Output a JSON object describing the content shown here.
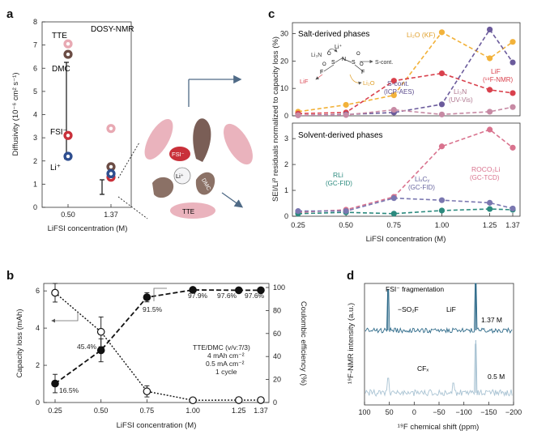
{
  "panels": {
    "a": {
      "label": "a",
      "title": "DOSY-NMR",
      "ylabel": "Diffusivity (10⁻⁶ cm² s⁻¹)",
      "xlabel": "LiFSI concentration (M)",
      "yticks": [
        "0",
        "1",
        "2",
        "3",
        "4",
        "5",
        "6",
        "7",
        "8"
      ],
      "xticks": [
        "0.50",
        "1.37"
      ],
      "species": [
        {
          "name": "TTE",
          "color": "#e8a9b3",
          "ring": "#d9868f",
          "d050": 7.05,
          "d137": 3.4
        },
        {
          "name": "DMC",
          "color": "#6b4c44",
          "ring": "#4a342e",
          "d050": 6.6,
          "d137": 1.75
        },
        {
          "name": "FSI⁻",
          "color": "#c9303a",
          "ring": "#a3222b",
          "d050": 3.1,
          "d137": 1.3
        },
        {
          "name": "Li⁺",
          "color": "#2e4e8f",
          "ring": "#203a6e",
          "d050": 2.2,
          "d137": 1.45
        }
      ],
      "cluster_labels": {
        "fsi": "FSI⁻",
        "li": "Li⁺",
        "dmc": "DMC",
        "tte": "TTE"
      }
    },
    "b": {
      "label": "b",
      "ylabel_left": "Capacity loss (mAh)",
      "ylabel_right": "Coulombic efficiency (%)",
      "xlabel": "LiFSI concentration (M)",
      "conditions": [
        "TTE/DMC (v/v:7/3)",
        "4 mAh cm⁻²",
        "0.5 mA cm⁻²",
        "1 cycle"
      ],
      "ce_labels": [
        "16.5%",
        "45.4%",
        "91.5%",
        "97.9%",
        "97.6%",
        "97.6%"
      ]
    },
    "c": {
      "label": "c",
      "ylabel": "SEI/Li⁰ residuals normalized to capacity loss (%)",
      "xlabel": "LiFSI concentration (M)",
      "top_title": "Salt-derived phases",
      "bottom_title": "Solvent-derived phases",
      "top_labels": {
        "li2o": "Li₂O (KF)",
        "lif": "LiF",
        "lif_method": "(¹⁹F-NMR)",
        "scont": "S-cont.",
        "scont_method": "(ICP-AES)",
        "li3n": "Li₃N",
        "li3n_method": "(UV-Vis)"
      },
      "bottom_labels": {
        "rooco": "ROCO₂Li",
        "rooco_method": "(GC-TCD)",
        "rli": "RLi",
        "rli_method": "(GC-FID)",
        "lixcy": "LiₓCᵧ",
        "lixcy_method": "(GC-FID)"
      },
      "inset_labels": {
        "li": "Li⁺",
        "li3n": "Li₃N",
        "lif": "LiF",
        "li2o": "Li₂O",
        "scont": "S-cont.",
        "f": "F",
        "n": "N",
        "s": "S",
        "o": "O"
      }
    },
    "d": {
      "label": "d",
      "ylabel": "¹⁹F-NMR intensity (a.u.)",
      "xlabel": "¹⁹F chemical shift (ppm)",
      "xticks": [
        "100",
        "50",
        "0",
        "−50",
        "−100",
        "−150",
        "−200"
      ],
      "title": "FSI⁻ fragmentation",
      "peak_labels": [
        "−SO₂F",
        "LiF",
        "CFₓ"
      ],
      "traces": [
        {
          "name": "1.37 M",
          "color": "#2f6b8a"
        },
        {
          "name": "0.5 M",
          "color": "#a9c3d3"
        }
      ]
    }
  },
  "chart_data": [
    {
      "type": "scatter",
      "panel": "a",
      "title": "DOSY-NMR",
      "xlabel": "LiFSI concentration (M)",
      "ylabel": "Diffusivity (10⁻⁶ cm² s⁻¹)",
      "categories": [
        "0.50",
        "1.37"
      ],
      "ylim": [
        0,
        8
      ],
      "series": [
        {
          "name": "TTE",
          "values": [
            7.05,
            3.4
          ]
        },
        {
          "name": "DMC",
          "values": [
            6.6,
            1.75
          ]
        },
        {
          "name": "FSI⁻",
          "values": [
            3.1,
            1.3
          ]
        },
        {
          "name": "Li⁺",
          "values": [
            2.2,
            1.45
          ]
        }
      ]
    },
    {
      "type": "line",
      "panel": "b",
      "xlabel": "LiFSI concentration (M)",
      "x": [
        0.25,
        0.5,
        0.75,
        1.0,
        1.25,
        1.37
      ],
      "xticks": [
        "0.25",
        "0.50",
        "0.75",
        "1.00",
        "1.25",
        "1.37"
      ],
      "ylim": [
        0,
        6.4
      ],
      "ylim_right": [
        0,
        100
      ],
      "yticks_left": [
        0,
        2,
        4,
        6
      ],
      "yticks_right": [
        0,
        20,
        40,
        60,
        80,
        100
      ],
      "series": [
        {
          "axis": "right",
          "style": "filled",
          "values": [
            16.5,
            45.4,
            91.5,
            97.9,
            97.6,
            97.6
          ],
          "err": [
            8,
            10,
            4,
            0,
            0,
            0
          ]
        },
        {
          "axis": "left",
          "style": "open",
          "values": [
            5.9,
            3.8,
            0.6,
            0.12,
            0.13,
            0.13
          ],
          "err": [
            0.5,
            0.8,
            0.3,
            0,
            0,
            0
          ]
        }
      ]
    },
    {
      "type": "line",
      "panel": "c-top",
      "title": "Salt-derived phases",
      "x": [
        0.25,
        0.5,
        0.75,
        1.0,
        1.25,
        1.37
      ],
      "xticks": [
        "0.25",
        "0.50",
        "0.75",
        "1.00",
        "1.25",
        "1.37"
      ],
      "ylim": [
        0,
        34
      ],
      "yticks": [
        0,
        10,
        20,
        30
      ],
      "series": [
        {
          "name": "Li₂O (KF)",
          "color": "#f2b23a",
          "values": [
            1.5,
            4,
            7.5,
            30.5,
            21,
            27
          ]
        },
        {
          "name": "LiF (¹⁹F-NMR)",
          "color": "#d9414d",
          "values": [
            0.8,
            1.2,
            12.8,
            15.5,
            9.5,
            8.3
          ]
        },
        {
          "name": "S-cont. (ICP-AES)",
          "color": "#6b5b9c",
          "values": [
            0.2,
            0.5,
            1.2,
            4.2,
            31.5,
            19.5
          ]
        },
        {
          "name": "Li₃N (UV-Vis)",
          "color": "#c78aa4",
          "values": [
            0.2,
            0.3,
            2.2,
            0.5,
            1.5,
            3.2
          ]
        }
      ]
    },
    {
      "type": "line",
      "panel": "c-bottom",
      "title": "Solvent-derived phases",
      "x": [
        0.25,
        0.5,
        0.75,
        1.0,
        1.25,
        1.37
      ],
      "xticks": [
        "0.25",
        "0.50",
        "0.75",
        "1.00",
        "1.25",
        "1.37"
      ],
      "ylim": [
        0,
        3.6
      ],
      "yticks": [
        0,
        1,
        2,
        3
      ],
      "series": [
        {
          "name": "ROCO₂Li (GC-TCD)",
          "color": "#d9738e",
          "values": [
            0.15,
            0.25,
            0.75,
            2.7,
            3.35,
            2.65
          ]
        },
        {
          "name": "RLi (GC-FID)",
          "color": "#2b8a7e",
          "values": [
            0.1,
            0.15,
            0.1,
            0.22,
            0.28,
            0.25
          ]
        },
        {
          "name": "LiₓCᵧ (GC-FID)",
          "color": "#7a77b0",
          "values": [
            0.2,
            0.2,
            0.7,
            0.62,
            0.52,
            0.3
          ]
        }
      ]
    }
  ]
}
